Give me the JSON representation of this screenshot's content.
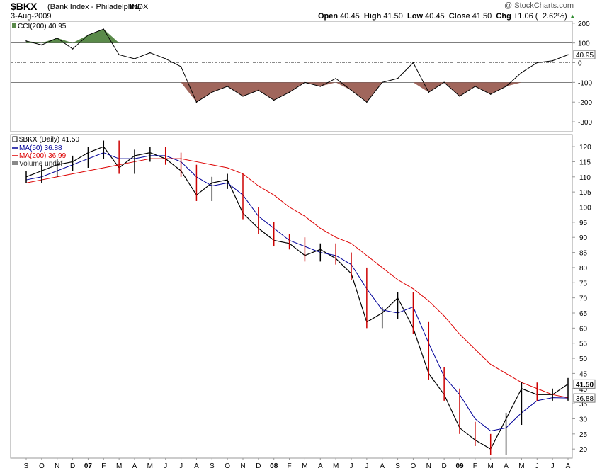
{
  "header": {
    "symbol": "$BKX",
    "name": "(Bank Index - Philadelphia)",
    "exchange": "INDX",
    "date": "3-Aug-2009",
    "brand": "@ StockCharts.com",
    "open_label": "Open",
    "open": "40.45",
    "high_label": "High",
    "high": "41.50",
    "low_label": "Low",
    "low": "40.45",
    "close_label": "Close",
    "close": "41.50",
    "chg_label": "Chg",
    "chg": "+1.06 (+2.62%)"
  },
  "colors": {
    "price_bar": "#000000",
    "down_bar": "#cc0000",
    "ma50": "#000099",
    "ma200": "#dd0000",
    "cci_pos_fill": "#5a8a4a",
    "cci_neg_fill": "#a0665c",
    "up_arrow": "#2e8b2e"
  },
  "chart_data": [
    {
      "type": "area",
      "title": "CCI(200) 40.95",
      "indicator": "CCI(200)",
      "last_value": 40.95,
      "last_label": "40.95",
      "ylim": [
        -350,
        210
      ],
      "yticks": [
        200,
        100,
        0,
        -100,
        -200,
        -300
      ],
      "ytick_labels": [
        "200",
        "100",
        "0",
        "-100",
        "-200",
        "-300"
      ],
      "reference_lines": [
        100,
        0,
        -100
      ],
      "x": [
        "2006-09",
        "2006-10",
        "2006-11",
        "2006-12",
        "2007-01",
        "2007-02",
        "2007-03",
        "2007-04",
        "2007-05",
        "2007-06",
        "2007-07",
        "2007-08",
        "2007-09",
        "2007-10",
        "2007-11",
        "2007-12",
        "2008-01",
        "2008-02",
        "2008-03",
        "2008-04",
        "2008-05",
        "2008-06",
        "2008-07",
        "2008-08",
        "2008-09",
        "2008-10",
        "2008-11",
        "2008-12",
        "2009-01",
        "2009-02",
        "2009-03",
        "2009-04",
        "2009-05",
        "2009-06",
        "2009-07",
        "2009-08"
      ],
      "values": [
        110,
        90,
        125,
        70,
        140,
        170,
        40,
        20,
        50,
        20,
        -20,
        -200,
        -150,
        -120,
        -170,
        -140,
        -190,
        -150,
        -100,
        -120,
        -80,
        -140,
        -200,
        -100,
        -80,
        0,
        -150,
        -100,
        -170,
        -120,
        -160,
        -120,
        -50,
        0,
        10,
        40
      ]
    },
    {
      "type": "line",
      "title": "$BKX (Daily) 41.50",
      "ylim": [
        17,
        124
      ],
      "yticks": [
        120,
        115,
        110,
        105,
        100,
        95,
        90,
        85,
        80,
        75,
        70,
        65,
        60,
        55,
        50,
        45,
        40,
        35,
        30,
        25,
        20
      ],
      "x": [
        "2006-09",
        "2006-10",
        "2006-11",
        "2006-12",
        "2007-01",
        "2007-02",
        "2007-03",
        "2007-04",
        "2007-05",
        "2007-06",
        "2007-07",
        "2007-08",
        "2007-09",
        "2007-10",
        "2007-11",
        "2007-12",
        "2008-01",
        "2008-02",
        "2008-03",
        "2008-04",
        "2008-05",
        "2008-06",
        "2008-07",
        "2008-08",
        "2008-09",
        "2008-10",
        "2008-11",
        "2008-12",
        "2009-01",
        "2009-02",
        "2009-03",
        "2009-04",
        "2009-05",
        "2009-06",
        "2009-07",
        "2009-08"
      ],
      "x_tick_labels": [
        "S",
        "O",
        "N",
        "D",
        "07",
        "F",
        "M",
        "A",
        "M",
        "J",
        "J",
        "A",
        "S",
        "O",
        "N",
        "D",
        "08",
        "F",
        "M",
        "A",
        "M",
        "J",
        "J",
        "A",
        "S",
        "O",
        "N",
        "D",
        "09",
        "F",
        "M",
        "A",
        "M",
        "J",
        "J",
        "A"
      ],
      "legend": [
        "$BKX (Daily) 41.50",
        "MA(50) 36.88",
        "MA(200) 36.99",
        "Volume undef"
      ],
      "series": [
        {
          "name": "$BKX (Daily)",
          "values": [
            110,
            112,
            114,
            115,
            118,
            120,
            113,
            117,
            118,
            116,
            112,
            104,
            108,
            109,
            98,
            93,
            89,
            88,
            84,
            86,
            83,
            78,
            62,
            65,
            70,
            60,
            45,
            38,
            27,
            23,
            20,
            30,
            40,
            38,
            38,
            41.5
          ]
        },
        {
          "name": "MA(50)",
          "values": [
            109,
            110,
            112,
            114,
            116,
            118,
            116,
            116,
            117,
            117,
            115,
            110,
            107,
            108,
            104,
            97,
            93,
            89,
            87,
            85,
            84,
            81,
            73,
            66,
            65,
            67,
            55,
            44,
            38,
            30,
            26,
            27,
            32,
            36,
            37,
            36.88
          ]
        },
        {
          "name": "MA(200)",
          "values": [
            108,
            109,
            110,
            111,
            112,
            113,
            114,
            115,
            116,
            116,
            116,
            115,
            114,
            113,
            111,
            107,
            104,
            100,
            97,
            93,
            90,
            88,
            84,
            80,
            76,
            73,
            69,
            64,
            58,
            53,
            48,
            45,
            42,
            40,
            38,
            36.99
          ]
        }
      ],
      "last_labels": [
        "41.50",
        "36.88"
      ]
    }
  ]
}
